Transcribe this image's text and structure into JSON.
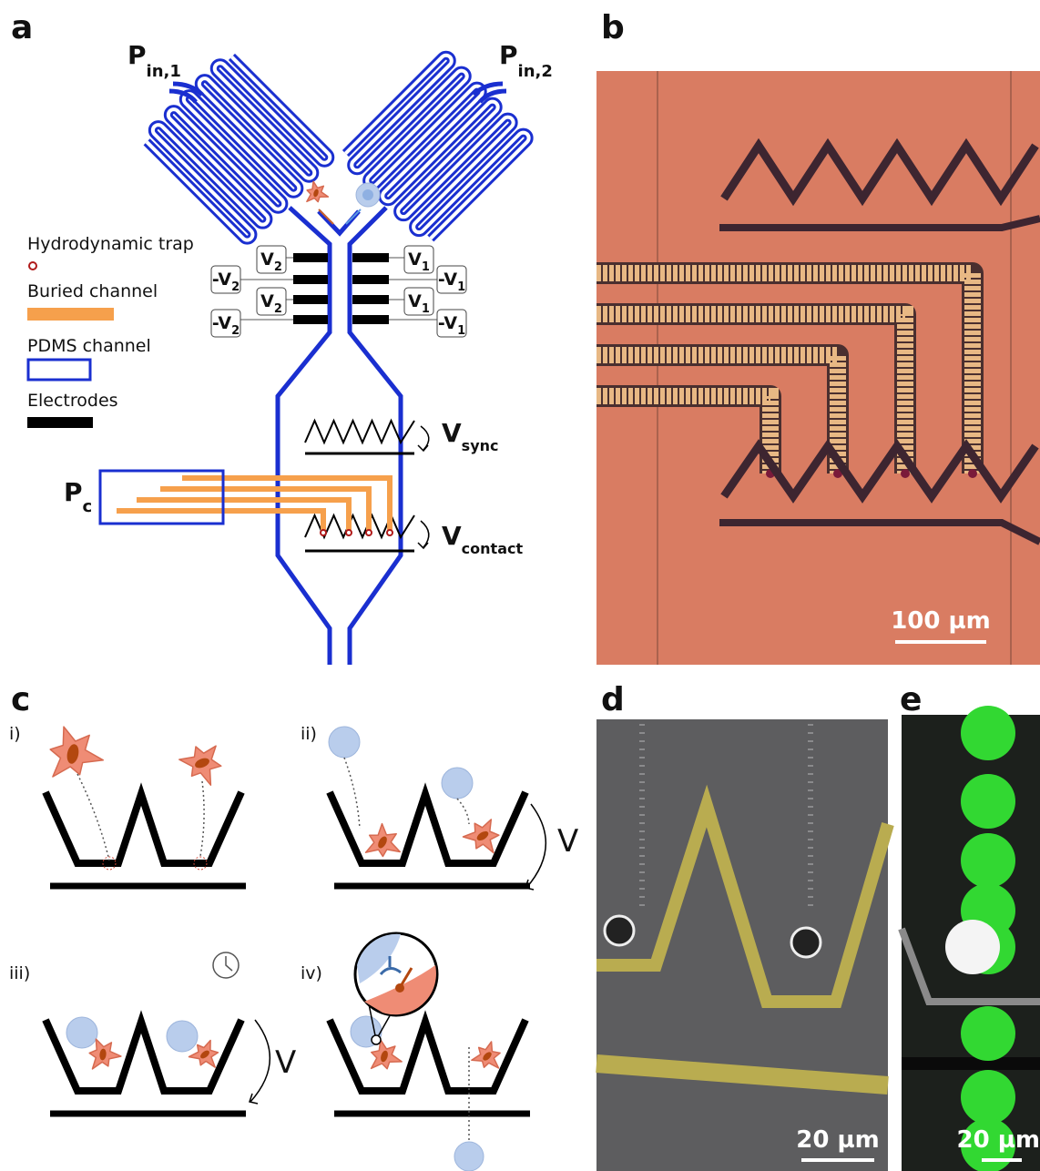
{
  "panel_labels": [
    "a",
    "b",
    "c",
    "d",
    "e"
  ],
  "panel_a": {
    "inlet_1": {
      "text": "P",
      "sub": "in,1"
    },
    "inlet_2": {
      "text": "P",
      "sub": "in,2"
    },
    "legend": [
      "Hydrodynamic trap",
      "Buried channel",
      "PDMS channel",
      "Electrodes"
    ],
    "electrode_labels": [
      {
        "text": "V",
        "sub": "2"
      },
      {
        "text": "-V",
        "sub": "2"
      },
      {
        "text": "V",
        "sub": "2"
      },
      {
        "text": "-V",
        "sub": "2"
      },
      {
        "text": "V",
        "sub": "1"
      },
      {
        "text": "-V",
        "sub": "1"
      },
      {
        "text": "V",
        "sub": "1"
      },
      {
        "text": "-V",
        "sub": "1"
      }
    ],
    "v_sync": {
      "text": "V",
      "sub": "sync"
    },
    "v_contact": {
      "text": "V",
      "sub": "contact"
    },
    "p_c": {
      "text": "P",
      "sub": "c"
    }
  },
  "panel_b": {
    "scale_bar": "100 µm"
  },
  "panel_c": {
    "steps": [
      "i)",
      "ii)",
      "iii)",
      "iv)"
    ],
    "voltage_labels": [
      "V",
      "V"
    ]
  },
  "panel_d": {
    "scale_bar": "20 µm"
  },
  "panel_e": {
    "scale_bar": "20 µm"
  }
}
